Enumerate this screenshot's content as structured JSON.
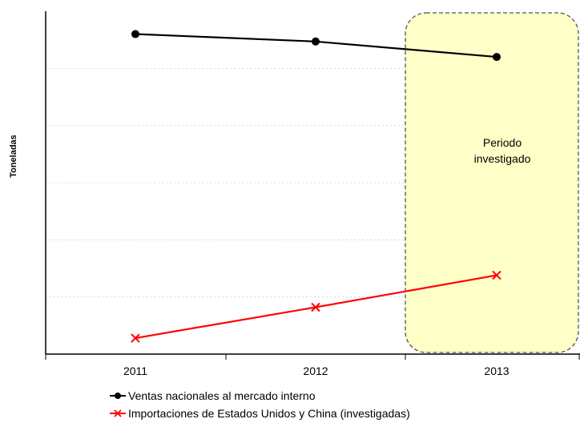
{
  "chart_data": {
    "type": "line",
    "title": "",
    "ylabel": "Toneladas",
    "xlabel": "",
    "categories": [
      "2011",
      "2012",
      "2013"
    ],
    "ylim": [
      0,
      6
    ],
    "grid": true,
    "series": [
      {
        "name": "Ventas nacionales al mercado interno",
        "values": [
          5.6,
          5.47,
          5.2
        ],
        "color": "#000000",
        "marker": "circle"
      },
      {
        "name": "Importaciones de Estados Unidos y China (investigadas)",
        "values": [
          0.28,
          0.82,
          1.38
        ],
        "color": "#ff0000",
        "marker": "x"
      }
    ],
    "annotation": {
      "text_line1": "Periodo",
      "text_line2": "investigado",
      "fill": "#ffffc8"
    },
    "legend_placement": "bottom"
  }
}
